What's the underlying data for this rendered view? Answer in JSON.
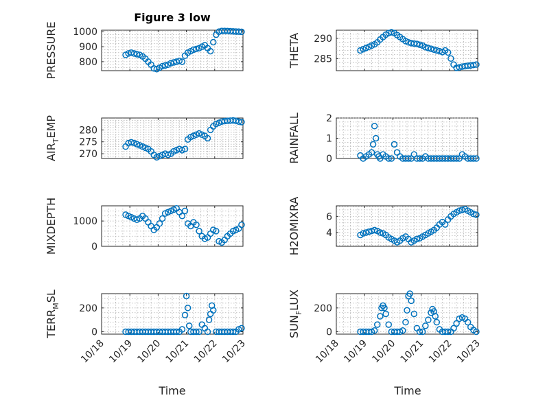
{
  "figure": {
    "title": "Figure 3 low",
    "xlabel": "Time"
  },
  "colors": {
    "marker": "#0072bd",
    "axis": "#262626",
    "grid": "#b0b0b0",
    "background": "#ffffff"
  },
  "chart_data": [
    {
      "type": "scatter",
      "ylabel": "PRESSURE",
      "ylim": [
        740,
        1010
      ],
      "yticks": [
        800,
        900,
        1000
      ],
      "xlim": [
        0,
        5
      ],
      "xticks": [
        "10/18",
        "10/19",
        "10/20",
        "10/21",
        "10/22",
        "10/23"
      ],
      "x": [
        0.85,
        0.95,
        1.05,
        1.15,
        1.25,
        1.35,
        1.45,
        1.55,
        1.65,
        1.75,
        1.85,
        1.95,
        2.05,
        2.15,
        2.25,
        2.35,
        2.45,
        2.55,
        2.65,
        2.75,
        2.85,
        2.95,
        3.05,
        3.15,
        3.25,
        3.35,
        3.45,
        3.55,
        3.65,
        3.75,
        3.85,
        3.95,
        4.05,
        4.15,
        4.25,
        4.35,
        4.45,
        4.55,
        4.65,
        4.75,
        4.85,
        4.95
      ],
      "y": [
        845,
        855,
        860,
        855,
        850,
        845,
        835,
        820,
        800,
        780,
        755,
        750,
        760,
        770,
        775,
        780,
        790,
        795,
        800,
        805,
        800,
        840,
        860,
        870,
        880,
        885,
        890,
        900,
        910,
        890,
        870,
        930,
        980,
        1000,
        1005,
        1005,
        1004,
        1003,
        1002,
        1001,
        1000,
        999
      ]
    },
    {
      "type": "scatter",
      "ylabel": "THETA",
      "ylim": [
        282,
        292
      ],
      "yticks": [
        285,
        290
      ],
      "xlim": [
        0,
        5
      ],
      "xticks": [
        "10/18",
        "10/19",
        "10/20",
        "10/21",
        "10/22",
        "10/23"
      ],
      "x": [
        0.85,
        0.95,
        1.05,
        1.15,
        1.25,
        1.35,
        1.45,
        1.55,
        1.65,
        1.75,
        1.85,
        1.95,
        2.05,
        2.15,
        2.25,
        2.35,
        2.45,
        2.55,
        2.65,
        2.75,
        2.85,
        2.95,
        3.05,
        3.15,
        3.25,
        3.35,
        3.45,
        3.55,
        3.65,
        3.75,
        3.85,
        3.95,
        4.05,
        4.15,
        4.25,
        4.35,
        4.45,
        4.55,
        4.65,
        4.75,
        4.85,
        4.95
      ],
      "y": [
        287,
        287.3,
        287.6,
        287.9,
        288.2,
        288.5,
        289,
        289.7,
        290.3,
        290.9,
        291.3,
        291.5,
        291.3,
        290.8,
        290.3,
        289.8,
        289.3,
        289,
        288.8,
        288.7,
        288.6,
        288.4,
        288.2,
        287.8,
        287.6,
        287.4,
        287.2,
        287,
        286.8,
        286.6,
        287,
        286.5,
        285,
        283.5,
        282.7,
        282.8,
        283,
        283.1,
        283.2,
        283.3,
        283.4,
        283.5
      ]
    },
    {
      "type": "scatter",
      "ylabel": "AIR_TEMP",
      "ylim": [
        268,
        285
      ],
      "yticks": [
        270,
        275,
        280
      ],
      "xlim": [
        0,
        5
      ],
      "xticks": [
        "10/18",
        "10/19",
        "10/20",
        "10/21",
        "10/22",
        "10/23"
      ],
      "x": [
        0.85,
        0.95,
        1.05,
        1.15,
        1.25,
        1.35,
        1.45,
        1.55,
        1.65,
        1.75,
        1.85,
        1.95,
        2.05,
        2.15,
        2.25,
        2.35,
        2.45,
        2.55,
        2.65,
        2.75,
        2.85,
        2.95,
        3.05,
        3.15,
        3.25,
        3.35,
        3.45,
        3.55,
        3.65,
        3.75,
        3.85,
        3.95,
        4.05,
        4.15,
        4.25,
        4.35,
        4.45,
        4.55,
        4.65,
        4.75,
        4.85,
        4.95
      ],
      "y": [
        273,
        274.5,
        274.8,
        274.5,
        274,
        273.5,
        273,
        272.5,
        272,
        271,
        269.5,
        268.5,
        269,
        269.5,
        270,
        269.5,
        270,
        271,
        271.5,
        272,
        271.5,
        272,
        276,
        277,
        277.5,
        278,
        278.5,
        278,
        277.5,
        276.5,
        280,
        281.5,
        282.5,
        283,
        283.5,
        283.7,
        283.8,
        283.9,
        284,
        283.8,
        283.5,
        283.3
      ]
    },
    {
      "type": "scatter",
      "ylabel": "RAINFALL",
      "ylim": [
        0,
        2
      ],
      "yticks": [
        0,
        1,
        2
      ],
      "xlim": [
        0,
        5
      ],
      "xticks": [
        "10/18",
        "10/19",
        "10/20",
        "10/21",
        "10/22",
        "10/23"
      ],
      "x": [
        0.85,
        0.95,
        1.05,
        1.15,
        1.25,
        1.3,
        1.35,
        1.4,
        1.45,
        1.5,
        1.55,
        1.65,
        1.75,
        1.85,
        1.95,
        2.05,
        2.15,
        2.25,
        2.35,
        2.45,
        2.55,
        2.65,
        2.75,
        2.85,
        2.95,
        3.05,
        3.15,
        3.25,
        3.35,
        3.45,
        3.55,
        3.65,
        3.75,
        3.85,
        3.95,
        4.05,
        4.15,
        4.25,
        4.35,
        4.45,
        4.55,
        4.65,
        4.75,
        4.85,
        4.95
      ],
      "y": [
        0.15,
        0,
        0.1,
        0.2,
        0.3,
        0.7,
        1.6,
        1.0,
        0.2,
        0.1,
        0,
        0.2,
        0.1,
        0,
        0,
        0.7,
        0.3,
        0.1,
        0,
        0,
        0,
        0,
        0.2,
        0,
        0,
        0,
        0.1,
        0,
        0,
        0,
        0,
        0,
        0,
        0,
        0,
        0,
        0,
        0,
        0,
        0.2,
        0.1,
        0,
        0,
        0,
        0
      ]
    },
    {
      "type": "scatter",
      "ylabel": "MIXDEPTH",
      "ylim": [
        0,
        1600
      ],
      "yticks": [
        0,
        1000
      ],
      "xlim": [
        0,
        5
      ],
      "xticks": [
        "10/18",
        "10/19",
        "10/20",
        "10/21",
        "10/22",
        "10/23"
      ],
      "x": [
        0.85,
        0.95,
        1.05,
        1.15,
        1.25,
        1.35,
        1.45,
        1.55,
        1.65,
        1.75,
        1.85,
        1.95,
        2.05,
        2.15,
        2.25,
        2.35,
        2.45,
        2.55,
        2.65,
        2.75,
        2.85,
        2.95,
        3.05,
        3.15,
        3.25,
        3.35,
        3.45,
        3.55,
        3.65,
        3.75,
        3.85,
        3.95,
        4.05,
        4.15,
        4.25,
        4.35,
        4.45,
        4.55,
        4.65,
        4.75,
        4.85,
        4.95
      ],
      "y": [
        1250,
        1200,
        1150,
        1100,
        1050,
        1100,
        1200,
        1100,
        950,
        800,
        650,
        750,
        900,
        1100,
        1300,
        1350,
        1400,
        1450,
        1500,
        1350,
        1200,
        1400,
        900,
        800,
        950,
        850,
        600,
        400,
        300,
        350,
        500,
        650,
        600,
        200,
        150,
        250,
        400,
        500,
        600,
        650,
        700,
        850
      ]
    },
    {
      "type": "scatter",
      "ylabel": "H2OMIXRA",
      "ylim": [
        2.3,
        7.3
      ],
      "yticks": [
        4,
        6
      ],
      "xlim": [
        0,
        5
      ],
      "xticks": [
        "10/18",
        "10/19",
        "10/20",
        "10/21",
        "10/22",
        "10/23"
      ],
      "x": [
        0.85,
        0.95,
        1.05,
        1.15,
        1.25,
        1.35,
        1.45,
        1.55,
        1.65,
        1.75,
        1.85,
        1.95,
        2.05,
        2.15,
        2.25,
        2.35,
        2.45,
        2.55,
        2.65,
        2.75,
        2.85,
        2.95,
        3.05,
        3.15,
        3.25,
        3.35,
        3.45,
        3.55,
        3.65,
        3.75,
        3.85,
        3.95,
        4.05,
        4.15,
        4.25,
        4.35,
        4.45,
        4.55,
        4.65,
        4.75,
        4.85,
        4.95
      ],
      "y": [
        3.7,
        3.9,
        4.0,
        4.1,
        4.2,
        4.3,
        4.2,
        4.0,
        3.9,
        3.7,
        3.4,
        3.2,
        3.0,
        2.8,
        3.0,
        3.3,
        3.5,
        3.2,
        2.8,
        3.0,
        3.2,
        3.3,
        3.5,
        3.7,
        3.9,
        4.1,
        4.3,
        4.6,
        5.0,
        5.3,
        5.0,
        5.6,
        6.0,
        6.3,
        6.5,
        6.7,
        6.8,
        6.9,
        6.7,
        6.5,
        6.3,
        6.2
      ]
    },
    {
      "type": "scatter",
      "ylabel": "TERR_MSL",
      "ylim": [
        -20,
        320
      ],
      "yticks": [
        0,
        200
      ],
      "xlim": [
        0,
        5
      ],
      "xticks": [
        "10/18",
        "10/19",
        "10/20",
        "10/21",
        "10/22",
        "10/23"
      ],
      "x": [
        0.85,
        0.95,
        1.05,
        1.15,
        1.25,
        1.35,
        1.45,
        1.55,
        1.65,
        1.75,
        1.85,
        1.95,
        2.05,
        2.15,
        2.25,
        2.35,
        2.45,
        2.55,
        2.65,
        2.75,
        2.85,
        2.95,
        3.0,
        3.05,
        3.1,
        3.15,
        3.25,
        3.35,
        3.45,
        3.55,
        3.65,
        3.75,
        3.8,
        3.85,
        3.9,
        3.95,
        4.05,
        4.15,
        4.25,
        4.35,
        4.45,
        4.55,
        4.65,
        4.75,
        4.85,
        4.95
      ],
      "y": [
        0,
        0,
        0,
        0,
        0,
        0,
        0,
        0,
        0,
        0,
        0,
        0,
        0,
        0,
        0,
        0,
        0,
        0,
        0,
        0,
        20,
        140,
        300,
        200,
        50,
        0,
        0,
        0,
        0,
        60,
        30,
        0,
        100,
        150,
        220,
        180,
        0,
        0,
        0,
        0,
        0,
        0,
        0,
        0,
        20,
        30
      ]
    },
    {
      "type": "scatter",
      "ylabel": "SUN_FLUX",
      "ylim": [
        -20,
        320
      ],
      "yticks": [
        0,
        200
      ],
      "xlim": [
        0,
        5
      ],
      "xticks": [
        "10/18",
        "10/19",
        "10/20",
        "10/21",
        "10/22",
        "10/23"
      ],
      "x": [
        0.85,
        0.95,
        1.05,
        1.15,
        1.25,
        1.35,
        1.45,
        1.55,
        1.6,
        1.65,
        1.7,
        1.75,
        1.85,
        1.95,
        2.05,
        2.15,
        2.25,
        2.35,
        2.45,
        2.5,
        2.55,
        2.6,
        2.65,
        2.75,
        2.85,
        2.95,
        3.05,
        3.15,
        3.25,
        3.35,
        3.4,
        3.45,
        3.5,
        3.55,
        3.65,
        3.75,
        3.85,
        3.95,
        4.05,
        4.15,
        4.25,
        4.35,
        4.45,
        4.55,
        4.65,
        4.75,
        4.85,
        4.95
      ],
      "y": [
        0,
        0,
        0,
        0,
        0,
        10,
        60,
        130,
        200,
        220,
        200,
        150,
        60,
        0,
        0,
        0,
        0,
        10,
        80,
        180,
        300,
        320,
        260,
        150,
        30,
        0,
        0,
        50,
        100,
        160,
        190,
        170,
        130,
        80,
        20,
        0,
        0,
        0,
        0,
        30,
        70,
        110,
        120,
        110,
        80,
        40,
        15,
        0
      ]
    }
  ]
}
